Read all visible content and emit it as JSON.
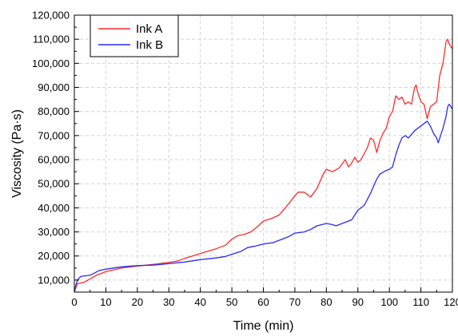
{
  "chart_data": {
    "type": "line",
    "xlabel": "Time (min)",
    "ylabel": "Viscosity (Pa·s)",
    "xlim": [
      0,
      120
    ],
    "ylim": [
      5000,
      120000
    ],
    "x_ticks": [
      0,
      10,
      20,
      30,
      40,
      50,
      60,
      70,
      80,
      90,
      100,
      110,
      120
    ],
    "y_ticks": [
      10000,
      20000,
      30000,
      40000,
      50000,
      60000,
      70000,
      80000,
      90000,
      100000,
      110000,
      120000
    ],
    "x_tick_labels": [
      "0",
      "10",
      "20",
      "30",
      "40",
      "50",
      "60",
      "70",
      "80",
      "90",
      "100",
      "110",
      "120"
    ],
    "y_tick_labels": [
      "10,000",
      "20,000",
      "30,000",
      "40,000",
      "50,000",
      "60,000",
      "70,000",
      "80,000",
      "90,000",
      "100,000",
      "110,000",
      "120,000"
    ],
    "grid": true,
    "legend_position": "top-left",
    "series": [
      {
        "name": "Ink A",
        "color": "#ff2a2a",
        "points": [
          [
            0,
            5000
          ],
          [
            0.5,
            7000
          ],
          [
            1,
            8500
          ],
          [
            3,
            9000
          ],
          [
            5,
            10500
          ],
          [
            7,
            12000
          ],
          [
            10,
            13500
          ],
          [
            15,
            15000
          ],
          [
            20,
            15800
          ],
          [
            25,
            16500
          ],
          [
            28,
            17000
          ],
          [
            30,
            17300
          ],
          [
            33,
            18000
          ],
          [
            35,
            19000
          ],
          [
            40,
            21000
          ],
          [
            42,
            21800
          ],
          [
            45,
            23000
          ],
          [
            48,
            24500
          ],
          [
            50,
            27000
          ],
          [
            52,
            28500
          ],
          [
            54,
            29000
          ],
          [
            56,
            30000
          ],
          [
            58,
            32000
          ],
          [
            60,
            34500
          ],
          [
            63,
            35800
          ],
          [
            65,
            37000
          ],
          [
            67,
            40000
          ],
          [
            70,
            45000
          ],
          [
            71,
            46500
          ],
          [
            73,
            46500
          ],
          [
            75,
            44500
          ],
          [
            77,
            48000
          ],
          [
            79,
            54000
          ],
          [
            80,
            56000
          ],
          [
            82,
            55000
          ],
          [
            84,
            56500
          ],
          [
            86,
            60000
          ],
          [
            87,
            57000
          ],
          [
            88,
            58500
          ],
          [
            89,
            61000
          ],
          [
            90,
            59000
          ],
          [
            91,
            60000
          ],
          [
            93,
            65000
          ],
          [
            94,
            69000
          ],
          [
            95,
            68000
          ],
          [
            96,
            63000
          ],
          [
            97,
            68000
          ],
          [
            98,
            71000
          ],
          [
            99,
            73000
          ],
          [
            100,
            78000
          ],
          [
            101,
            80000
          ],
          [
            102,
            86500
          ],
          [
            103,
            85000
          ],
          [
            104,
            86000
          ],
          [
            105,
            83000
          ],
          [
            106,
            84000
          ],
          [
            107,
            83000
          ],
          [
            108,
            90000
          ],
          [
            108.5,
            91000
          ],
          [
            109,
            88000
          ],
          [
            110,
            84000
          ],
          [
            111,
            83000
          ],
          [
            112,
            77000
          ],
          [
            113,
            82000
          ],
          [
            114,
            83000
          ],
          [
            115,
            84000
          ],
          [
            116,
            95000
          ],
          [
            117,
            100000
          ],
          [
            118,
            109000
          ],
          [
            118.5,
            110000
          ],
          [
            119,
            108000
          ],
          [
            120,
            106000
          ]
        ]
      },
      {
        "name": "Ink B",
        "color": "#2a2aff",
        "points": [
          [
            0,
            5000
          ],
          [
            0.5,
            8000
          ],
          [
            1,
            10000
          ],
          [
            2,
            11500
          ],
          [
            5,
            12000
          ],
          [
            8,
            14000
          ],
          [
            10,
            14500
          ],
          [
            15,
            15500
          ],
          [
            20,
            16000
          ],
          [
            25,
            16200
          ],
          [
            30,
            16800
          ],
          [
            35,
            17500
          ],
          [
            40,
            18500
          ],
          [
            45,
            19200
          ],
          [
            48,
            19800
          ],
          [
            50,
            20700
          ],
          [
            53,
            22000
          ],
          [
            55,
            23500
          ],
          [
            57,
            24000
          ],
          [
            60,
            25000
          ],
          [
            63,
            25500
          ],
          [
            65,
            26500
          ],
          [
            68,
            28000
          ],
          [
            70,
            29500
          ],
          [
            73,
            30000
          ],
          [
            75,
            31000
          ],
          [
            77,
            32500
          ],
          [
            80,
            33500
          ],
          [
            82,
            33000
          ],
          [
            83,
            32500
          ],
          [
            84,
            33000
          ],
          [
            86,
            34000
          ],
          [
            88,
            35000
          ],
          [
            90,
            39000
          ],
          [
            92,
            41000
          ],
          [
            94,
            46000
          ],
          [
            96,
            52000
          ],
          [
            97,
            54000
          ],
          [
            99,
            55500
          ],
          [
            100,
            56000
          ],
          [
            101,
            57000
          ],
          [
            102,
            62000
          ],
          [
            103,
            66000
          ],
          [
            104,
            69000
          ],
          [
            105,
            70000
          ],
          [
            106,
            69000
          ],
          [
            107,
            70500
          ],
          [
            108,
            72000
          ],
          [
            109,
            73000
          ],
          [
            110,
            74000
          ],
          [
            111,
            75000
          ],
          [
            112,
            76000
          ],
          [
            113,
            74000
          ],
          [
            114,
            71000
          ],
          [
            115,
            69000
          ],
          [
            115.5,
            67000
          ],
          [
            116,
            69000
          ],
          [
            117,
            73000
          ],
          [
            118,
            78000
          ],
          [
            118.5,
            82000
          ],
          [
            119,
            83000
          ],
          [
            119.5,
            82000
          ],
          [
            120,
            81000
          ]
        ]
      }
    ]
  }
}
